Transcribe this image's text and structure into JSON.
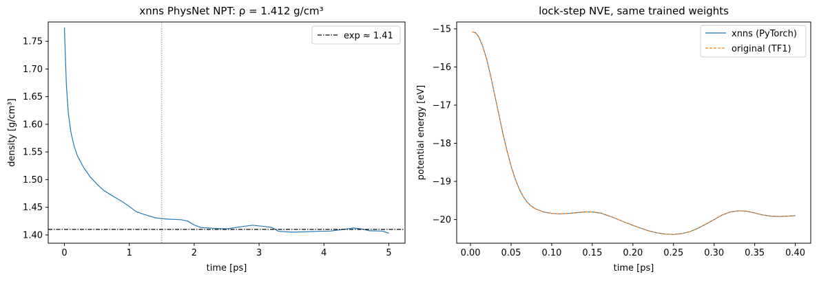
{
  "chart_data": [
    {
      "type": "line",
      "title": "xnns PhysNet NPT: ρ = 1.412 g/cm³",
      "xlabel": "time [ps]",
      "ylabel": "density [g/cm³]",
      "xlim": [
        -0.25,
        5.25
      ],
      "ylim": [
        1.385,
        1.785
      ],
      "xticks": [
        0,
        1,
        2,
        3,
        4,
        5
      ],
      "yticks": [
        1.4,
        1.45,
        1.5,
        1.55,
        1.6,
        1.65,
        1.7,
        1.75
      ],
      "ytick_labels": [
        "1.40",
        "1.45",
        "1.50",
        "1.55",
        "1.60",
        "1.65",
        "1.70",
        "1.75"
      ],
      "grid": false,
      "legend_placement": "upper-right",
      "series": [
        {
          "color": "#1f77b4",
          "x": [
            0,
            0.03,
            0.06,
            0.1,
            0.15,
            0.2,
            0.3,
            0.4,
            0.5,
            0.6,
            0.7,
            0.8,
            0.9,
            1.0,
            1.1,
            1.2,
            1.3,
            1.4,
            1.5,
            1.6,
            1.8,
            1.9,
            2.0,
            2.1,
            2.3,
            2.5,
            2.7,
            2.9,
            3.1,
            3.2,
            3.3,
            3.5,
            3.7,
            3.9,
            4.1,
            4.3,
            4.45,
            4.6,
            4.7,
            4.9,
            5.0
          ],
          "y": [
            1.775,
            1.67,
            1.62,
            1.585,
            1.56,
            1.543,
            1.521,
            1.5045,
            1.492,
            1.481,
            1.4735,
            1.4665,
            1.4595,
            1.4515,
            1.4425,
            1.438,
            1.4345,
            1.431,
            1.4295,
            1.4285,
            1.4275,
            1.425,
            1.418,
            1.4135,
            1.412,
            1.411,
            1.4145,
            1.4175,
            1.415,
            1.4135,
            1.4065,
            1.405,
            1.4055,
            1.4065,
            1.407,
            1.41,
            1.4125,
            1.4105,
            1.4075,
            1.407,
            1.403
          ]
        },
        {
          "name": "exp ≈ 1.41",
          "color": "#000000",
          "style": "dashdot",
          "hline": 1.41
        }
      ],
      "annotations": [
        {
          "type": "vline",
          "x": 1.5,
          "color": "#808080",
          "style": "dotted"
        }
      ]
    },
    {
      "type": "line",
      "title": "lock-step NVE, same trained weights",
      "xlabel": "time [ps]",
      "ylabel": "potential energy [eV]",
      "xlim": [
        -0.017,
        0.419
      ],
      "ylim": [
        -20.62,
        -14.82
      ],
      "xticks": [
        0.0,
        0.05,
        0.1,
        0.15,
        0.2,
        0.25,
        0.3,
        0.35,
        0.4
      ],
      "xtick_labels": [
        "0.00",
        "0.05",
        "0.10",
        "0.15",
        "0.20",
        "0.25",
        "0.30",
        "0.35",
        "0.40"
      ],
      "yticks": [
        -15,
        -16,
        -17,
        -18,
        -19,
        -20
      ],
      "ytick_labels": [
        "−15",
        "−16",
        "−17",
        "−18",
        "−19",
        "−20"
      ],
      "grid": false,
      "legend_placement": "upper-right",
      "series": [
        {
          "name": "xnns (PyTorch)",
          "color": "#1f77b4",
          "style": "solid",
          "x": [
            0.002,
            0.006,
            0.01,
            0.015,
            0.02,
            0.025,
            0.03,
            0.035,
            0.04,
            0.045,
            0.05,
            0.055,
            0.06,
            0.065,
            0.07,
            0.075,
            0.08,
            0.09,
            0.1,
            0.11,
            0.12,
            0.13,
            0.14,
            0.15,
            0.16,
            0.17,
            0.18,
            0.19,
            0.2,
            0.21,
            0.22,
            0.23,
            0.24,
            0.25,
            0.26,
            0.27,
            0.28,
            0.29,
            0.3,
            0.31,
            0.32,
            0.33,
            0.34,
            0.35,
            0.36,
            0.37,
            0.38,
            0.39,
            0.4
          ],
          "y": [
            -15.08,
            -15.1,
            -15.2,
            -15.45,
            -15.8,
            -16.25,
            -16.75,
            -17.25,
            -17.75,
            -18.2,
            -18.6,
            -18.93,
            -19.2,
            -19.4,
            -19.55,
            -19.65,
            -19.72,
            -19.8,
            -19.84,
            -19.85,
            -19.84,
            -19.82,
            -19.8,
            -19.8,
            -19.83,
            -19.9,
            -19.98,
            -20.07,
            -20.15,
            -20.23,
            -20.3,
            -20.35,
            -20.38,
            -20.39,
            -20.37,
            -20.32,
            -20.23,
            -20.12,
            -20.0,
            -19.88,
            -19.8,
            -19.77,
            -19.78,
            -19.83,
            -19.88,
            -19.91,
            -19.92,
            -19.91,
            -19.9
          ]
        },
        {
          "name": "original (TF1)",
          "color": "#ff7f0e",
          "style": "dashed",
          "x": [
            0.002,
            0.006,
            0.01,
            0.015,
            0.02,
            0.025,
            0.03,
            0.035,
            0.04,
            0.045,
            0.05,
            0.055,
            0.06,
            0.065,
            0.07,
            0.075,
            0.08,
            0.09,
            0.1,
            0.11,
            0.12,
            0.13,
            0.14,
            0.15,
            0.16,
            0.17,
            0.18,
            0.19,
            0.2,
            0.21,
            0.22,
            0.23,
            0.24,
            0.25,
            0.26,
            0.27,
            0.28,
            0.29,
            0.3,
            0.31,
            0.32,
            0.33,
            0.34,
            0.35,
            0.36,
            0.37,
            0.38,
            0.39,
            0.4
          ],
          "y": [
            -15.08,
            -15.1,
            -15.2,
            -15.45,
            -15.8,
            -16.25,
            -16.75,
            -17.25,
            -17.75,
            -18.2,
            -18.6,
            -18.93,
            -19.2,
            -19.4,
            -19.55,
            -19.65,
            -19.72,
            -19.8,
            -19.84,
            -19.85,
            -19.84,
            -19.82,
            -19.8,
            -19.8,
            -19.83,
            -19.9,
            -19.98,
            -20.07,
            -20.15,
            -20.23,
            -20.3,
            -20.35,
            -20.38,
            -20.39,
            -20.37,
            -20.32,
            -20.23,
            -20.12,
            -20.0,
            -19.88,
            -19.8,
            -19.77,
            -19.78,
            -19.83,
            -19.88,
            -19.91,
            -19.92,
            -19.91,
            -19.9
          ]
        }
      ]
    }
  ]
}
